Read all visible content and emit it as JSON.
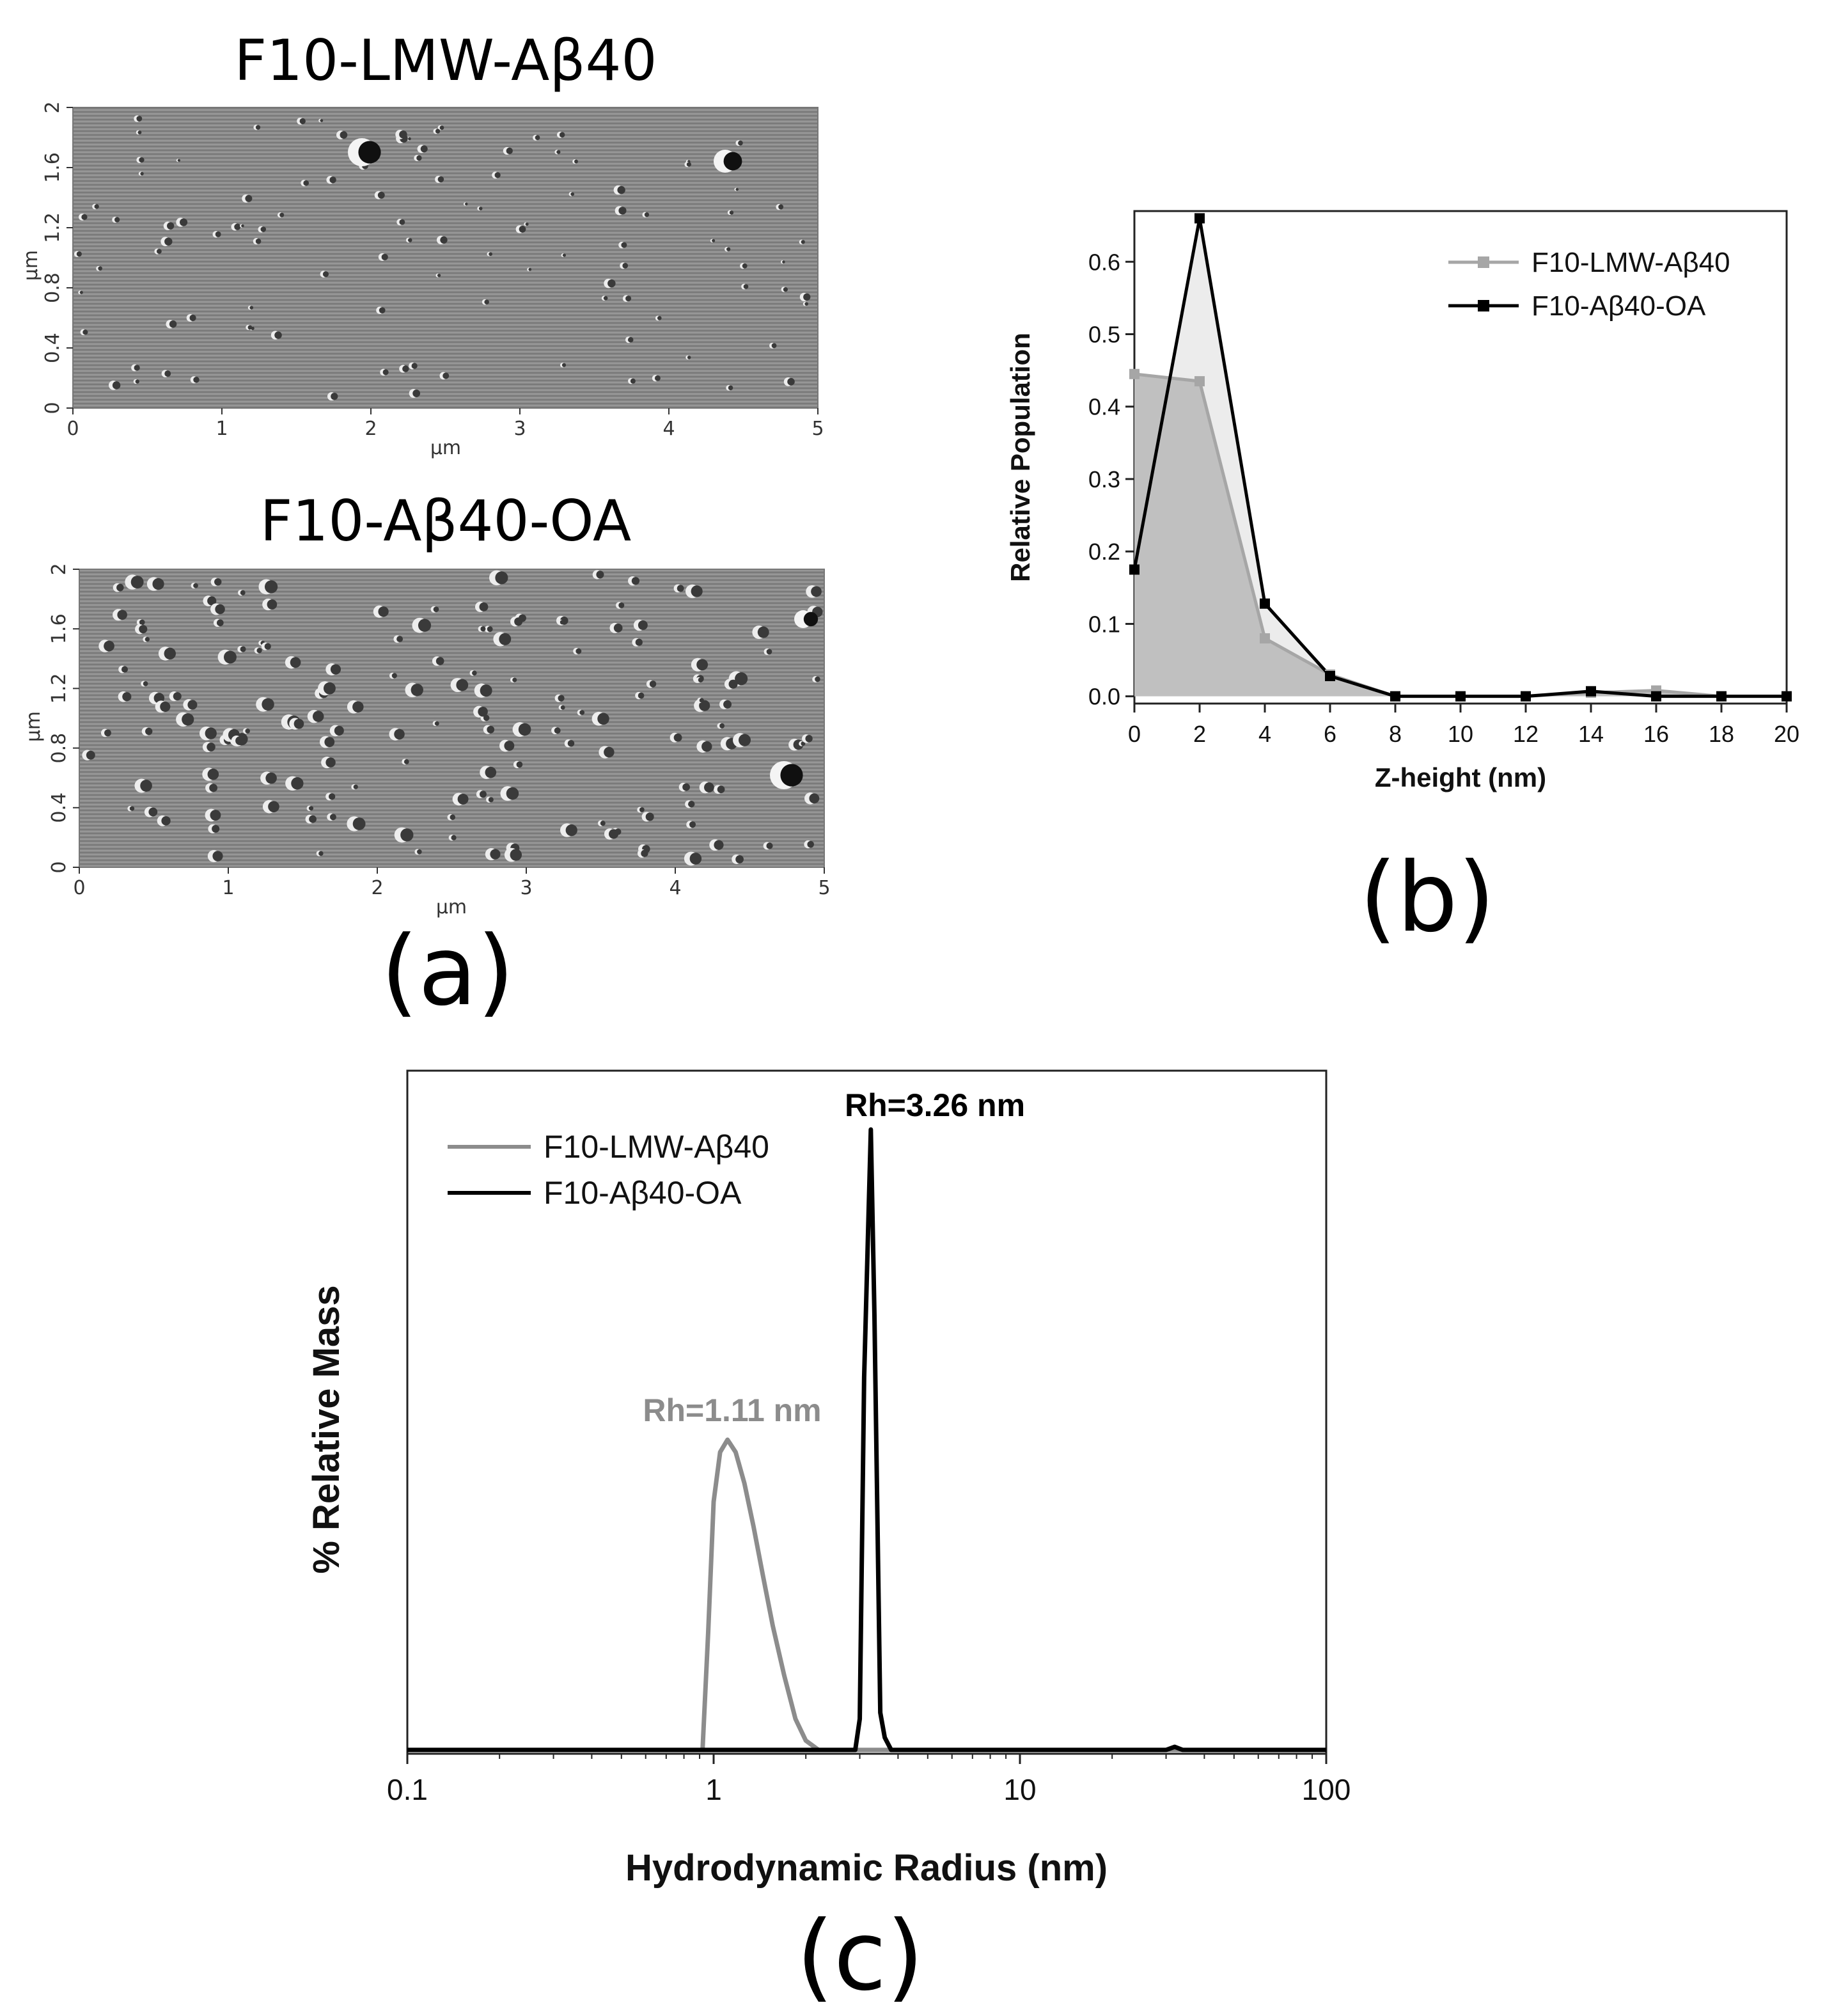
{
  "colors": {
    "lmw": "#8c8c8c",
    "lmw_marker": "#a6a6a6",
    "lmw_fill": "#c0c0c0",
    "oa": "#000000",
    "oa_fill": "#ececec",
    "afm_background": "#8a8a8a"
  },
  "panel_a": {
    "label": "(a)",
    "images": [
      {
        "title": "F10-LMW-Aβ40",
        "x_ticks": [
          "0",
          "1",
          "2",
          "3",
          "4",
          "5"
        ],
        "y_ticks": [
          "0",
          "0.4",
          "0.8",
          "1.2",
          "1.6",
          "2"
        ],
        "x_unit": "µm",
        "y_unit": "µm"
      },
      {
        "title": "F10-Aβ40-OA",
        "x_ticks": [
          "0",
          "1",
          "2",
          "3",
          "4",
          "5"
        ],
        "y_ticks": [
          "0",
          "0.4",
          "0.8",
          "1.2",
          "1.6",
          "2"
        ],
        "x_unit": "µm",
        "y_unit": "µm"
      }
    ]
  },
  "panel_b": {
    "label": "(b)"
  },
  "panel_c": {
    "label": "(c)"
  },
  "chart_data": [
    {
      "type": "area",
      "panel": "b",
      "xlabel": "Z-height (nm)",
      "ylabel": "Relative Population",
      "xlim": [
        0,
        20
      ],
      "ylim": [
        -0.01,
        0.67
      ],
      "x_ticks": [
        "0",
        "2",
        "4",
        "6",
        "8",
        "10",
        "12",
        "14",
        "16",
        "18",
        "20"
      ],
      "y_ticks": [
        "0.0",
        "0.1",
        "0.2",
        "0.3",
        "0.4",
        "0.5",
        "0.6"
      ],
      "legend_position": "top-right",
      "x": [
        0,
        2,
        4,
        6,
        8,
        10,
        12,
        14,
        16,
        18,
        20
      ],
      "series": [
        {
          "name": "F10-LMW-Aβ40",
          "values": [
            0.445,
            0.435,
            0.08,
            0.03,
            0.0,
            0.0,
            0.0,
            0.005,
            0.008,
            0.0,
            0.0
          ]
        },
        {
          "name": "F10-Aβ40-OA",
          "values": [
            0.175,
            0.66,
            0.128,
            0.028,
            0.0,
            0.0,
            0.0,
            0.007,
            0.0,
            0.0,
            0.0
          ]
        }
      ]
    },
    {
      "type": "line",
      "panel": "c",
      "xlabel": "Hydrodynamic Radius (nm)",
      "ylabel": "% Relative Mass",
      "xscale": "log",
      "xlim": [
        0.1,
        100
      ],
      "ylim": [
        0,
        1.0
      ],
      "x_ticks": [
        "0.1",
        "1",
        "10",
        "100"
      ],
      "y_ticks": [],
      "legend_position": "top-left",
      "annotations": [
        {
          "text": "Rh=1.11 nm",
          "series": "F10-LMW-Aβ40",
          "x": 1.11
        },
        {
          "text": "Rh=3.26 nm",
          "series": "F10-Aβ40-OA",
          "x": 3.26
        }
      ],
      "series": [
        {
          "name": "F10-LMW-Aβ40",
          "x": [
            0.1,
            0.92,
            0.96,
            1.0,
            1.05,
            1.11,
            1.18,
            1.26,
            1.35,
            1.45,
            1.56,
            1.7,
            1.85,
            2.0,
            2.2,
            100
          ],
          "values": [
            0,
            0,
            0.19,
            0.4,
            0.48,
            0.5,
            0.48,
            0.43,
            0.36,
            0.28,
            0.2,
            0.12,
            0.05,
            0.015,
            0,
            0
          ]
        },
        {
          "name": "F10-Aβ40-OA",
          "x": [
            0.1,
            2.9,
            3.0,
            3.1,
            3.26,
            3.35,
            3.5,
            3.62,
            3.8,
            30,
            32,
            34,
            100
          ],
          "values": [
            0,
            0,
            0.05,
            0.6,
            1.0,
            0.7,
            0.06,
            0.02,
            0,
            0,
            0.005,
            0,
            0
          ]
        }
      ]
    }
  ]
}
